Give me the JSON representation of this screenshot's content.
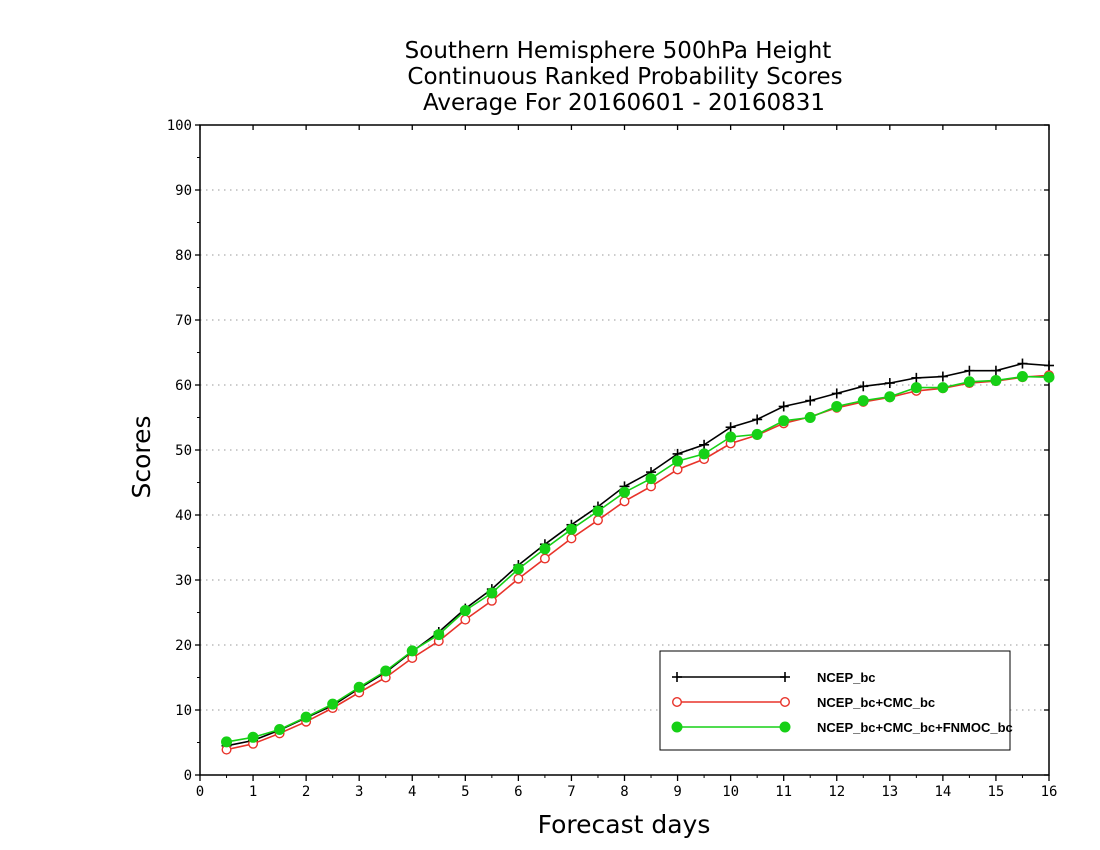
{
  "chart_data": {
    "type": "line",
    "title": [
      "Southern Hemisphere 500hPa Height",
      "Continuous Ranked Probability Scores",
      "Average For 20160601 - 20160831"
    ],
    "xlabel": "Forecast days",
    "ylabel": "Scores",
    "xlim": [
      0,
      16
    ],
    "ylim": [
      0,
      100
    ],
    "xticks": [
      "0",
      "1",
      "2",
      "3",
      "4",
      "5",
      "6",
      "7",
      "8",
      "9",
      "10",
      "11",
      "12",
      "13",
      "14",
      "15",
      "16"
    ],
    "yticks": [
      "0",
      "10",
      "20",
      "30",
      "40",
      "50",
      "60",
      "70",
      "80",
      "90",
      "100"
    ],
    "grid": "horizontal dotted",
    "legend_position": "bottom-right",
    "x": [
      0.5,
      1,
      1.5,
      2,
      2.5,
      3,
      3.5,
      4,
      4.5,
      5,
      5.5,
      6,
      6.5,
      7,
      7.5,
      8,
      8.5,
      9,
      9.5,
      10,
      10.5,
      11,
      11.5,
      12,
      12.5,
      13,
      13.5,
      14,
      14.5,
      15,
      15.5,
      16
    ],
    "series": [
      {
        "name": "NCEP_bc",
        "color": "#000000",
        "marker": "plus",
        "values": [
          4.5,
          5.3,
          6.9,
          8.8,
          10.7,
          13.3,
          15.8,
          19.0,
          22.0,
          25.6,
          28.6,
          32.3,
          35.5,
          38.5,
          41.3,
          44.4,
          46.6,
          49.4,
          50.8,
          53.5,
          54.7,
          56.7,
          57.6,
          58.7,
          59.8,
          60.3,
          61.1,
          61.3,
          62.2,
          62.2,
          63.3,
          63.0
        ]
      },
      {
        "name": "NCEP_bc+CMC_bc",
        "color": "#e8332a",
        "marker": "open-circle",
        "values": [
          3.9,
          4.8,
          6.4,
          8.2,
          10.3,
          12.7,
          15.0,
          18.0,
          20.6,
          23.9,
          26.8,
          30.2,
          33.3,
          36.4,
          39.2,
          42.1,
          44.4,
          47.0,
          48.6,
          51.0,
          52.3,
          54.1,
          55.1,
          56.5,
          57.4,
          58.1,
          59.1,
          59.5,
          60.3,
          60.6,
          61.2,
          61.5
        ]
      },
      {
        "name": "NCEP_bc+CMC_bc+FNMOC_bc",
        "color": "#16d016",
        "marker": "filled-circle",
        "values": [
          5.1,
          5.8,
          7.0,
          8.9,
          10.9,
          13.5,
          16.0,
          19.1,
          21.6,
          25.3,
          28.0,
          31.7,
          34.8,
          37.8,
          40.6,
          43.5,
          45.6,
          48.3,
          49.4,
          52.0,
          52.4,
          54.5,
          55.0,
          56.7,
          57.6,
          58.2,
          59.6,
          59.6,
          60.5,
          60.7,
          61.3,
          61.2
        ]
      }
    ]
  }
}
